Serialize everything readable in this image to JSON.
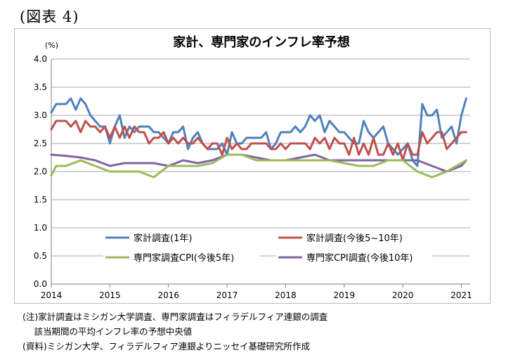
{
  "figure_label": "(図表 4)",
  "notes": {
    "line1": "(注)家計調査はミシガン大学調査、専門家調査はフィラデルフィア連銀の調査",
    "line2": "　 該当期間の平均インフレ率の予想中央値",
    "line3": "(資料)ミシガン大学、フィラデルフィア連銀よりニッセイ基礎研究所作成"
  },
  "chart_data": {
    "type": "line",
    "title": "家計、専門家のインフレ率予想",
    "ylabel": "(%)",
    "xlabel": "",
    "ylim": [
      0.0,
      4.0
    ],
    "yticks": [
      "0.0",
      "0.5",
      "1.0",
      "1.5",
      "2.0",
      "2.5",
      "3.0",
      "3.5",
      "4.0"
    ],
    "xlim": [
      2014.0,
      2021.15
    ],
    "xticks": [
      "2014",
      "2015",
      "2016",
      "2017",
      "2018",
      "2019",
      "2020",
      "2021"
    ],
    "grid": "horizontal",
    "series": [
      {
        "name": "家計調査(1年)",
        "color": "#4f81bd",
        "x": [
          2014.0,
          2014.083,
          2014.167,
          2014.25,
          2014.333,
          2014.417,
          2014.5,
          2014.583,
          2014.667,
          2014.75,
          2014.833,
          2014.917,
          2015.0,
          2015.083,
          2015.167,
          2015.25,
          2015.333,
          2015.417,
          2015.5,
          2015.583,
          2015.667,
          2015.75,
          2015.833,
          2015.917,
          2016.0,
          2016.083,
          2016.167,
          2016.25,
          2016.333,
          2016.417,
          2016.5,
          2016.583,
          2016.667,
          2016.75,
          2016.833,
          2016.917,
          2017.0,
          2017.083,
          2017.167,
          2017.25,
          2017.333,
          2017.417,
          2017.5,
          2017.583,
          2017.667,
          2017.75,
          2017.833,
          2017.917,
          2018.0,
          2018.083,
          2018.167,
          2018.25,
          2018.333,
          2018.417,
          2018.5,
          2018.583,
          2018.667,
          2018.75,
          2018.833,
          2018.917,
          2019.0,
          2019.083,
          2019.167,
          2019.25,
          2019.333,
          2019.417,
          2019.5,
          2019.583,
          2019.667,
          2019.75,
          2019.833,
          2019.917,
          2020.0,
          2020.083,
          2020.167,
          2020.25,
          2020.333,
          2020.417,
          2020.5,
          2020.583,
          2020.667,
          2020.75,
          2020.833,
          2020.917,
          2021.0,
          2021.083
        ],
        "values": [
          3.05,
          3.2,
          3.2,
          3.2,
          3.3,
          3.1,
          3.3,
          3.2,
          3.0,
          2.9,
          2.8,
          2.8,
          2.5,
          2.8,
          3.0,
          2.6,
          2.8,
          2.7,
          2.8,
          2.8,
          2.8,
          2.7,
          2.7,
          2.6,
          2.5,
          2.7,
          2.7,
          2.8,
          2.4,
          2.6,
          2.7,
          2.5,
          2.4,
          2.4,
          2.4,
          2.5,
          2.3,
          2.7,
          2.5,
          2.5,
          2.6,
          2.6,
          2.6,
          2.6,
          2.7,
          2.4,
          2.5,
          2.7,
          2.7,
          2.7,
          2.8,
          2.7,
          2.8,
          3.0,
          2.9,
          3.0,
          2.7,
          2.9,
          2.8,
          2.7,
          2.7,
          2.6,
          2.5,
          2.5,
          2.9,
          2.7,
          2.6,
          2.7,
          2.8,
          2.5,
          2.4,
          2.3,
          2.4,
          2.5,
          2.2,
          2.1,
          3.2,
          3.0,
          3.0,
          3.1,
          2.6,
          2.7,
          2.8,
          2.5,
          3.0,
          3.3
        ]
      },
      {
        "name": "家計調査(今後5~10年)",
        "color": "#c0504d",
        "x": [
          2014.0,
          2014.083,
          2014.167,
          2014.25,
          2014.333,
          2014.417,
          2014.5,
          2014.583,
          2014.667,
          2014.75,
          2014.833,
          2014.917,
          2015.0,
          2015.083,
          2015.167,
          2015.25,
          2015.333,
          2015.417,
          2015.5,
          2015.583,
          2015.667,
          2015.75,
          2015.833,
          2015.917,
          2016.0,
          2016.083,
          2016.167,
          2016.25,
          2016.333,
          2016.417,
          2016.5,
          2016.583,
          2016.667,
          2016.75,
          2016.833,
          2016.917,
          2017.0,
          2017.083,
          2017.167,
          2017.25,
          2017.333,
          2017.417,
          2017.5,
          2017.583,
          2017.667,
          2017.75,
          2017.833,
          2017.917,
          2018.0,
          2018.083,
          2018.167,
          2018.25,
          2018.333,
          2018.417,
          2018.5,
          2018.583,
          2018.667,
          2018.75,
          2018.833,
          2018.917,
          2019.0,
          2019.083,
          2019.167,
          2019.25,
          2019.333,
          2019.417,
          2019.5,
          2019.583,
          2019.667,
          2019.75,
          2019.833,
          2019.917,
          2020.0,
          2020.083,
          2020.167,
          2020.25,
          2020.333,
          2020.417,
          2020.5,
          2020.583,
          2020.667,
          2020.75,
          2020.833,
          2020.917,
          2021.0,
          2021.083
        ],
        "values": [
          2.75,
          2.9,
          2.9,
          2.9,
          2.8,
          2.9,
          2.7,
          2.9,
          2.8,
          2.8,
          2.7,
          2.8,
          2.6,
          2.8,
          2.6,
          2.8,
          2.6,
          2.8,
          2.7,
          2.7,
          2.5,
          2.6,
          2.6,
          2.7,
          2.5,
          2.6,
          2.5,
          2.6,
          2.5,
          2.5,
          2.6,
          2.5,
          2.4,
          2.5,
          2.5,
          2.3,
          2.6,
          2.4,
          2.5,
          2.4,
          2.4,
          2.5,
          2.5,
          2.5,
          2.5,
          2.4,
          2.4,
          2.5,
          2.4,
          2.5,
          2.5,
          2.5,
          2.5,
          2.4,
          2.6,
          2.5,
          2.6,
          2.4,
          2.6,
          2.5,
          2.5,
          2.3,
          2.6,
          2.3,
          2.5,
          2.3,
          2.6,
          2.3,
          2.3,
          2.5,
          2.3,
          2.5,
          2.2,
          2.5,
          2.3,
          2.3,
          2.7,
          2.5,
          2.6,
          2.7,
          2.7,
          2.4,
          2.5,
          2.6,
          2.7,
          2.7
        ]
      },
      {
        "name": "専門家調査CPI(今後5年)",
        "color": "#9bbb59",
        "x": [
          2014.0,
          2014.083,
          2014.25,
          2014.5,
          2014.75,
          2015.0,
          2015.25,
          2015.5,
          2015.75,
          2016.0,
          2016.25,
          2016.5,
          2016.75,
          2017.0,
          2017.25,
          2017.5,
          2017.75,
          2018.0,
          2018.25,
          2018.5,
          2018.75,
          2019.0,
          2019.25,
          2019.5,
          2019.75,
          2020.0,
          2020.25,
          2020.5,
          2020.75,
          2021.0,
          2021.083
        ],
        "values": [
          1.93,
          2.1,
          2.1,
          2.2,
          2.1,
          2.0,
          2.0,
          2.0,
          1.9,
          2.1,
          2.1,
          2.1,
          2.15,
          2.3,
          2.3,
          2.2,
          2.2,
          2.2,
          2.2,
          2.2,
          2.2,
          2.15,
          2.1,
          2.1,
          2.2,
          2.2,
          2.0,
          1.9,
          2.0,
          2.15,
          2.2
        ]
      },
      {
        "name": "専門家CPI調査(今後10年)",
        "color": "#8064a2",
        "x": [
          2014.0,
          2014.25,
          2014.5,
          2014.75,
          2015.0,
          2015.25,
          2015.5,
          2015.75,
          2016.0,
          2016.25,
          2016.5,
          2016.75,
          2017.0,
          2017.25,
          2017.5,
          2017.75,
          2018.0,
          2018.25,
          2018.5,
          2018.75,
          2019.0,
          2019.25,
          2019.5,
          2019.75,
          2020.0,
          2020.25,
          2020.5,
          2020.75,
          2021.0,
          2021.083
        ],
        "values": [
          2.3,
          2.28,
          2.25,
          2.2,
          2.1,
          2.15,
          2.15,
          2.15,
          2.1,
          2.2,
          2.15,
          2.2,
          2.3,
          2.3,
          2.25,
          2.2,
          2.2,
          2.25,
          2.3,
          2.2,
          2.2,
          2.2,
          2.2,
          2.2,
          2.2,
          2.2,
          2.1,
          2.0,
          2.1,
          2.2
        ]
      }
    ]
  }
}
